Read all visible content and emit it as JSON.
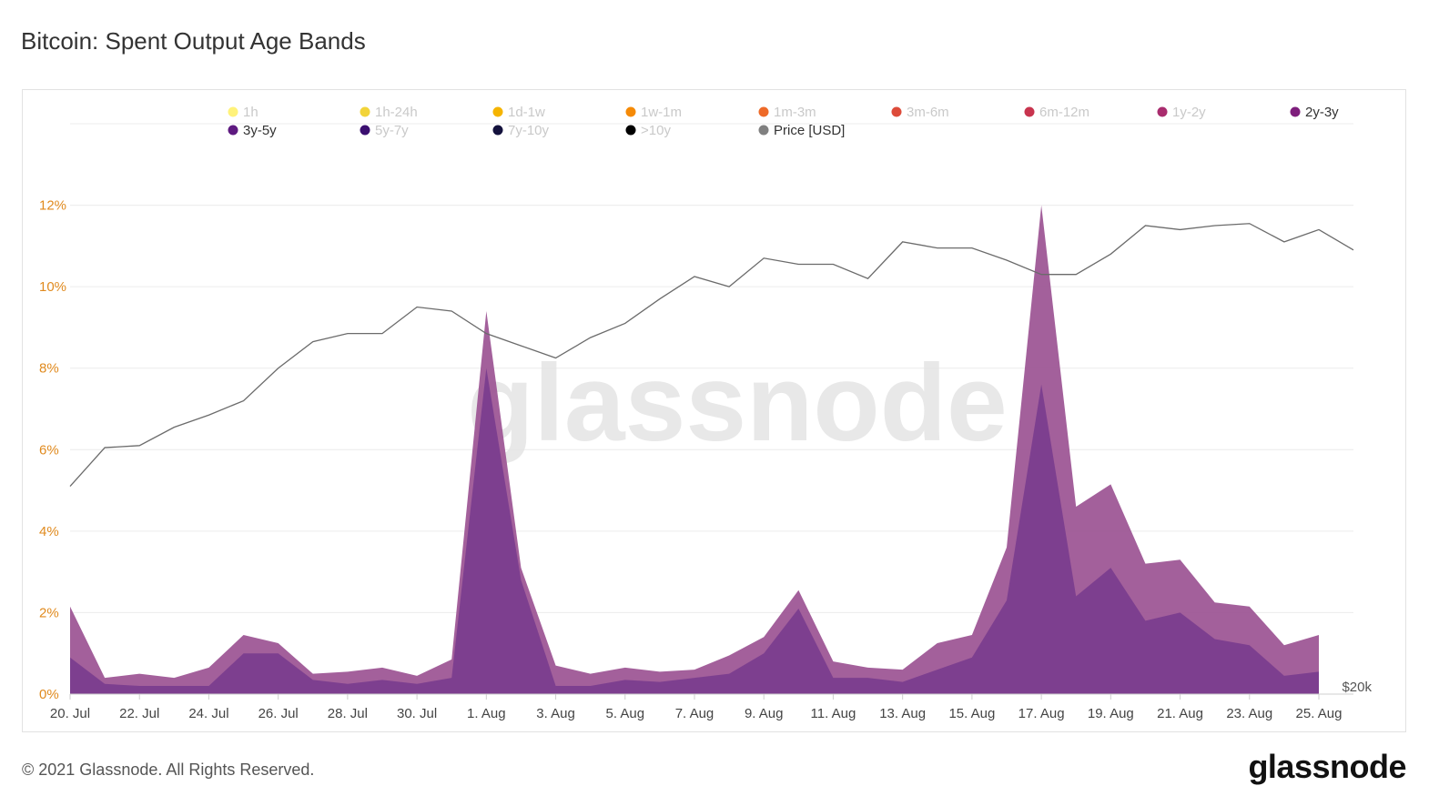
{
  "page": {
    "title": "Bitcoin: Spent Output Age Bands",
    "copyright": "© 2021 Glassnode. All Rights Reserved.",
    "logo": "glassnode",
    "watermark": "glassnode"
  },
  "chart_data": {
    "type": "area",
    "title": "Bitcoin: Spent Output Age Bands",
    "xlabel": "",
    "ylabel": "",
    "ylim": [
      0,
      14
    ],
    "y_ticks": [
      0,
      2,
      4,
      6,
      8,
      10,
      12
    ],
    "y_tick_labels": [
      "0%",
      "2%",
      "4%",
      "6%",
      "8%",
      "10%",
      "12%"
    ],
    "right_axis_label": "$20k",
    "x": [
      "20 Jul",
      "21 Jul",
      "22 Jul",
      "23 Jul",
      "24 Jul",
      "25 Jul",
      "26 Jul",
      "27 Jul",
      "28 Jul",
      "29 Jul",
      "30 Jul",
      "31 Jul",
      "1 Aug",
      "2 Aug",
      "3 Aug",
      "4 Aug",
      "5 Aug",
      "6 Aug",
      "7 Aug",
      "8 Aug",
      "9 Aug",
      "10 Aug",
      "11 Aug",
      "12 Aug",
      "13 Aug",
      "14 Aug",
      "15 Aug",
      "16 Aug",
      "17 Aug",
      "18 Aug",
      "19 Aug",
      "20 Aug",
      "21 Aug",
      "22 Aug",
      "23 Aug",
      "24 Aug",
      "25 Aug",
      "26 Aug"
    ],
    "x_tick_labels": [
      "20. Jul",
      "22. Jul",
      "24. Jul",
      "26. Jul",
      "28. Jul",
      "30. Jul",
      "1. Aug",
      "3. Aug",
      "5. Aug",
      "7. Aug",
      "9. Aug",
      "11. Aug",
      "13. Aug",
      "15. Aug",
      "17. Aug",
      "19. Aug",
      "21. Aug",
      "23. Aug",
      "25. Aug"
    ],
    "legend": [
      {
        "name": "1h",
        "color": "#fff27a",
        "active": false
      },
      {
        "name": "1h-24h",
        "color": "#f2d43a",
        "active": false
      },
      {
        "name": "1d-1w",
        "color": "#f5b400",
        "active": false
      },
      {
        "name": "1w-1m",
        "color": "#f58a07",
        "active": false
      },
      {
        "name": "1m-3m",
        "color": "#ee6a28",
        "active": false
      },
      {
        "name": "3m-6m",
        "color": "#dd4b3a",
        "active": false
      },
      {
        "name": "6m-12m",
        "color": "#c8344e",
        "active": false
      },
      {
        "name": "1y-2y",
        "color": "#a92c6e",
        "active": false
      },
      {
        "name": "2y-3y",
        "color": "#7e1e7c",
        "active": true
      },
      {
        "name": "3y-5y",
        "color": "#5e1a80",
        "active": true
      },
      {
        "name": "5y-7y",
        "color": "#3b0f70",
        "active": false
      },
      {
        "name": "7y-10y",
        "color": "#14123d",
        "active": false
      },
      {
        "name": ">10y",
        "color": "#000000",
        "active": false
      },
      {
        "name": "Price [USD]",
        "color": "#808080",
        "active": true
      }
    ],
    "series": [
      {
        "name": "3y-5y",
        "color": "#7a3d8e",
        "values": [
          0.9,
          0.25,
          0.2,
          0.2,
          0.2,
          1.0,
          1.0,
          0.35,
          0.25,
          0.35,
          0.25,
          0.4,
          8.0,
          2.8,
          0.2,
          0.2,
          0.35,
          0.3,
          0.4,
          0.5,
          1.0,
          2.1,
          0.4,
          0.4,
          0.3,
          0.6,
          0.9,
          2.3,
          7.6,
          2.4,
          3.1,
          1.8,
          2.0,
          1.35,
          1.2,
          0.45,
          0.55,
          null
        ]
      },
      {
        "name": "2y-3y",
        "color": "#9b5393",
        "values": [
          2.15,
          0.4,
          0.5,
          0.4,
          0.65,
          1.45,
          1.25,
          0.5,
          0.55,
          0.65,
          0.45,
          0.85,
          9.4,
          3.1,
          0.7,
          0.5,
          0.65,
          0.55,
          0.6,
          0.95,
          1.4,
          2.55,
          0.8,
          0.65,
          0.6,
          1.25,
          1.45,
          3.6,
          12.0,
          4.6,
          5.15,
          3.2,
          3.3,
          2.25,
          2.15,
          1.2,
          1.45,
          null
        ]
      },
      {
        "name": "Price [USD]",
        "color": "#6b6b6b",
        "values": [
          5.1,
          6.05,
          6.1,
          6.55,
          6.85,
          7.2,
          8.0,
          8.65,
          8.85,
          8.85,
          9.5,
          9.4,
          8.85,
          8.55,
          8.25,
          8.75,
          9.1,
          9.7,
          10.25,
          10.0,
          10.7,
          10.55,
          10.55,
          10.2,
          11.1,
          10.95,
          10.95,
          10.65,
          10.3,
          10.3,
          10.8,
          11.5,
          11.4,
          11.5,
          11.55,
          11.1,
          11.4,
          10.9
        ]
      }
    ]
  }
}
